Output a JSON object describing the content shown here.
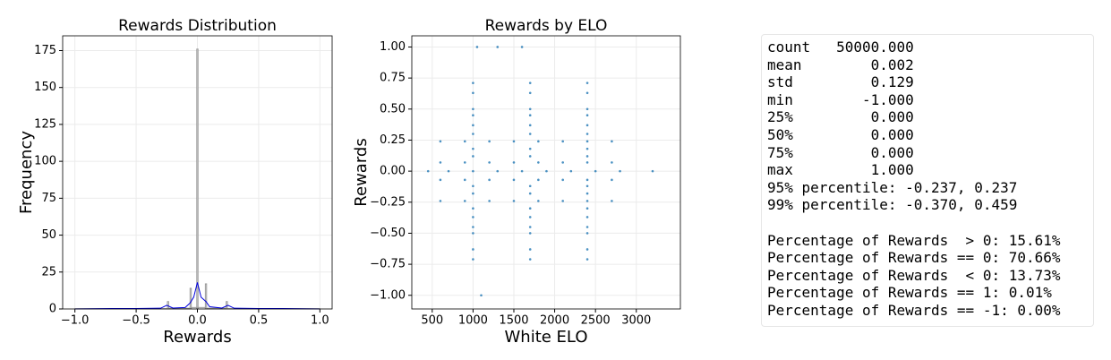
{
  "chart_data": [
    {
      "type": "histogram",
      "title": "Rewards Distribution",
      "xlabel": "Rewards",
      "ylabel": "Frequency",
      "bins": [
        -1,
        -0.245,
        -0.235,
        -0.06,
        -0.05,
        -0.005,
        0.005,
        0.065,
        0.075,
        0.235,
        0.245,
        1
      ],
      "counts": [
        0.2,
        5,
        0.5,
        14,
        1,
        176,
        1,
        17,
        0.5,
        5,
        0.2
      ],
      "color": "#999999",
      "kde": {
        "x": [
          -1,
          -0.7,
          -0.5,
          -0.3,
          -0.25,
          -0.2,
          -0.1,
          -0.06,
          -0.03,
          0,
          0.03,
          0.07,
          0.1,
          0.2,
          0.25,
          0.3,
          0.5,
          0.7,
          1
        ],
        "values": [
          0,
          0.3,
          0.3,
          0.5,
          2.5,
          0.6,
          1,
          4,
          8,
          18,
          8,
          5,
          1.5,
          0.6,
          2.5,
          0.5,
          0.3,
          0.3,
          0
        ],
        "color": "#0000dd"
      },
      "xlim": [
        -1.1,
        1.1
      ],
      "ylim": [
        0,
        185
      ],
      "xticks": [
        {
          "value": -1,
          "label": "−1.0"
        },
        {
          "value": -0.5,
          "label": "−0.5"
        },
        {
          "value": 0,
          "label": "0.0"
        },
        {
          "value": 0.5,
          "label": "0.5"
        },
        {
          "value": 1,
          "label": "1.0"
        }
      ],
      "yticks": [
        0,
        25,
        50,
        75,
        100,
        125,
        150,
        175
      ],
      "grid": true
    },
    {
      "type": "scatter",
      "title": "Rewards by ELO",
      "xlabel": "White ELO",
      "ylabel": "Rewards",
      "color": "#1f77b4",
      "x": [
        450,
        700,
        1000,
        1300,
        1600,
        1900,
        2200,
        2500,
        2800,
        3200,
        600,
        900,
        1200,
        1500,
        1800,
        2100,
        2400,
        2700,
        600,
        900,
        1200,
        1500,
        1800,
        2100,
        2400,
        2700,
        600,
        900,
        1200,
        1500,
        1800,
        2100,
        2400,
        2700,
        600,
        900,
        1200,
        1500,
        1800,
        2100,
        2400,
        2700,
        1000,
        1700,
        2400,
        1000,
        1700,
        2400,
        1000,
        1700,
        2400,
        1000,
        1700,
        2400,
        1000,
        1700,
        2400,
        1000,
        1700,
        2400,
        1000,
        1700,
        2400,
        1000,
        1700,
        2400,
        1000,
        1700,
        2400,
        1000,
        1700,
        2400,
        1000,
        1700,
        2400,
        1000,
        1700,
        2400,
        1000,
        1700,
        2400,
        1000,
        1700,
        2400,
        1000,
        1700,
        2400,
        1000,
        1700,
        2400,
        1100,
        1050,
        1300,
        1600
      ],
      "y": [
        0,
        0,
        0,
        0,
        0,
        0,
        0,
        0,
        0,
        0,
        0.07,
        0.07,
        0.07,
        0.07,
        0.07,
        0.07,
        0.07,
        0.07,
        -0.07,
        -0.07,
        -0.07,
        -0.07,
        -0.07,
        -0.07,
        -0.07,
        -0.07,
        0.24,
        0.24,
        0.24,
        0.24,
        0.24,
        0.24,
        0.24,
        0.24,
        -0.24,
        -0.24,
        -0.24,
        -0.24,
        -0.24,
        -0.24,
        -0.24,
        -0.24,
        -0.71,
        -0.71,
        -0.71,
        -0.63,
        -0.63,
        -0.63,
        -0.5,
        -0.5,
        -0.5,
        -0.45,
        -0.45,
        -0.45,
        -0.37,
        -0.37,
        -0.37,
        -0.3,
        -0.3,
        -0.3,
        -0.18,
        -0.18,
        -0.18,
        -0.12,
        -0.12,
        -0.12,
        0.12,
        0.12,
        0.12,
        0.18,
        0.18,
        0.18,
        0.3,
        0.3,
        0.3,
        0.37,
        0.37,
        0.37,
        0.45,
        0.45,
        0.45,
        0.5,
        0.5,
        0.5,
        0.63,
        0.63,
        0.63,
        0.71,
        0.71,
        0.71,
        -1,
        1,
        1,
        1
      ],
      "xlim": [
        250,
        3540
      ],
      "ylim": [
        -1.11,
        1.09
      ],
      "xticks": [
        500,
        1000,
        1500,
        2000,
        2500,
        3000
      ],
      "yticks": [
        {
          "value": -1,
          "label": "−1.00"
        },
        {
          "value": -0.75,
          "label": "−0.75"
        },
        {
          "value": -0.5,
          "label": "−0.50"
        },
        {
          "value": -0.25,
          "label": "−0.25"
        },
        {
          "value": 0,
          "label": "0.00"
        },
        {
          "value": 0.25,
          "label": "0.25"
        },
        {
          "value": 0.5,
          "label": "0.50"
        },
        {
          "value": 0.75,
          "label": "0.75"
        },
        {
          "value": 1,
          "label": "1.00"
        }
      ],
      "grid": true
    }
  ],
  "stats": {
    "summary": [
      "count   50000.000",
      "mean        0.002",
      "std         0.129",
      "min        -1.000",
      "25%         0.000",
      "50%         0.000",
      "75%         0.000",
      "max         1.000",
      "95% percentile: -0.237, 0.237",
      "99% percentile: -0.370, 0.459"
    ],
    "percentages": [
      "Percentage of Rewards  > 0: 15.61%",
      "Percentage of Rewards == 0: 70.66%",
      "Percentage of Rewards  < 0: 13.73%",
      "Percentage of Rewards == 1: 0.01%",
      "Percentage of Rewards == -1: 0.00%"
    ]
  }
}
